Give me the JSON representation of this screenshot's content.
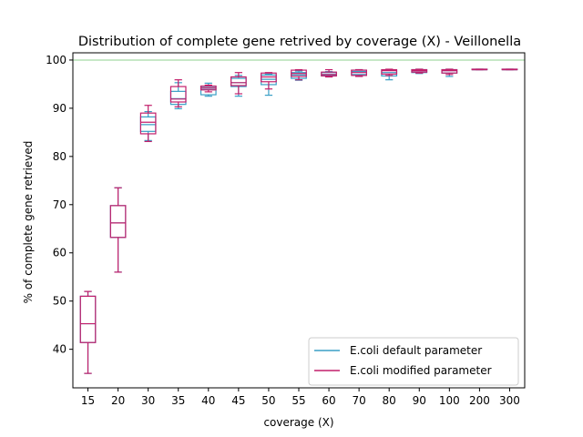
{
  "chart_data": {
    "type": "box",
    "title": "Distribution of complete gene retrived by coverage (X) - Veillonella",
    "xlabel": "coverage (X)",
    "ylabel": "% of complete gene retrieved",
    "categories": [
      "15",
      "20",
      "30",
      "35",
      "40",
      "45",
      "50",
      "55",
      "60",
      "70",
      "80",
      "90",
      "100",
      "200",
      "300"
    ],
    "ylim": [
      32,
      101.5
    ],
    "yticks": [
      40,
      50,
      60,
      70,
      80,
      90,
      100
    ],
    "reference_line": {
      "y": 100,
      "color": "#8fd18f"
    },
    "legend": {
      "position": "lower-right"
    },
    "series": [
      {
        "name": "E.coli default parameter",
        "color": "#3a9fc6",
        "boxes": [
          {
            "min": 35.0,
            "q1": 41.4,
            "median": 45.3,
            "q3": 51.0,
            "max": 52.0
          },
          {
            "min": 56.0,
            "q1": 63.2,
            "median": 66.2,
            "q3": 69.8,
            "max": 73.5
          },
          {
            "min": 83.3,
            "q1": 85.2,
            "median": 86.6,
            "q3": 88.2,
            "max": 89.3
          },
          {
            "min": 89.9,
            "q1": 90.8,
            "median": 92.0,
            "q3": 93.5,
            "max": 95.3
          },
          {
            "min": 92.5,
            "q1": 92.8,
            "median": 93.9,
            "q3": 94.5,
            "max": 95.2
          },
          {
            "min": 92.5,
            "q1": 94.5,
            "median": 95.3,
            "q3": 96.2,
            "max": 96.8
          },
          {
            "min": 92.7,
            "q1": 94.9,
            "median": 96.0,
            "q3": 96.9,
            "max": 97.1
          },
          {
            "min": 95.8,
            "q1": 96.2,
            "median": 96.9,
            "q3": 97.4,
            "max": 97.7
          },
          {
            "min": 96.5,
            "q1": 96.8,
            "median": 97.0,
            "q3": 97.4,
            "max": 97.6
          },
          {
            "min": 96.6,
            "q1": 97.0,
            "median": 97.6,
            "q3": 97.9,
            "max": 98.0
          },
          {
            "min": 95.9,
            "q1": 96.7,
            "median": 97.4,
            "q3": 97.9,
            "max": 98.0
          },
          {
            "min": 97.2,
            "q1": 97.4,
            "median": 97.8,
            "q3": 98.0,
            "max": 98.1
          },
          {
            "min": 96.6,
            "q1": 97.3,
            "median": 97.8,
            "q3": 98.0,
            "max": 98.1
          },
          {
            "min": 98.0,
            "q1": 98.0,
            "median": 98.0,
            "q3": 98.1,
            "max": 98.1
          },
          {
            "min": 98.0,
            "q1": 98.0,
            "median": 98.0,
            "q3": 98.1,
            "max": 98.1
          }
        ]
      },
      {
        "name": "E.coli modified parameter",
        "color": "#c21f6b",
        "boxes": [
          {
            "min": 35.0,
            "q1": 41.4,
            "median": 45.3,
            "q3": 51.0,
            "max": 52.0
          },
          {
            "min": 56.0,
            "q1": 63.2,
            "median": 66.2,
            "q3": 69.8,
            "max": 73.5
          },
          {
            "min": 83.1,
            "q1": 84.7,
            "median": 87.1,
            "q3": 89.0,
            "max": 90.6
          },
          {
            "min": 90.3,
            "q1": 91.3,
            "median": 91.9,
            "q3": 94.5,
            "max": 95.9
          },
          {
            "min": 93.4,
            "q1": 93.8,
            "median": 94.2,
            "q3": 94.6,
            "max": 94.8
          },
          {
            "min": 93.0,
            "q1": 94.7,
            "median": 95.3,
            "q3": 96.5,
            "max": 97.4
          },
          {
            "min": 94.0,
            "q1": 95.5,
            "median": 96.5,
            "q3": 97.3,
            "max": 97.4
          },
          {
            "min": 95.9,
            "q1": 96.6,
            "median": 97.2,
            "q3": 97.9,
            "max": 98.0
          },
          {
            "min": 96.5,
            "q1": 96.7,
            "median": 97.0,
            "q3": 97.5,
            "max": 98.0
          },
          {
            "min": 96.6,
            "q1": 96.8,
            "median": 97.4,
            "q3": 97.9,
            "max": 98.0
          },
          {
            "min": 96.8,
            "q1": 97.1,
            "median": 97.8,
            "q3": 98.0,
            "max": 98.1
          },
          {
            "min": 97.3,
            "q1": 97.5,
            "median": 97.8,
            "q3": 98.0,
            "max": 98.1
          },
          {
            "min": 97.0,
            "q1": 97.3,
            "median": 97.8,
            "q3": 98.0,
            "max": 98.1
          },
          {
            "min": 98.0,
            "q1": 98.0,
            "median": 98.0,
            "q3": 98.1,
            "max": 98.1
          },
          {
            "min": 98.0,
            "q1": 98.0,
            "median": 98.0,
            "q3": 98.1,
            "max": 98.1
          }
        ]
      }
    ]
  }
}
